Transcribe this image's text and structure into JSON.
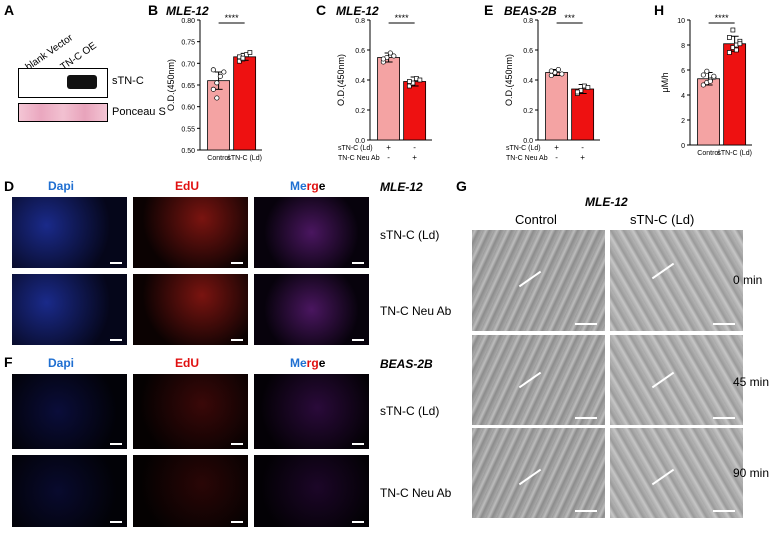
{
  "panels": {
    "A": {
      "label": "A",
      "lanes": [
        "blank Vector",
        "TN-C OE"
      ],
      "bands": [
        "sTN-C",
        "Ponceau S"
      ]
    },
    "B": {
      "label": "B",
      "title": "MLE-12"
    },
    "C": {
      "label": "C",
      "title": "MLE-12"
    },
    "E": {
      "label": "E",
      "title": "BEAS-2B"
    },
    "H": {
      "label": "H"
    },
    "D": {
      "label": "D",
      "cell_line": "MLE-12",
      "channels": {
        "dapi": "Dapi",
        "edu": "EdU",
        "merge_parts": [
          "Me",
          "r",
          "g",
          "e"
        ]
      },
      "rows": [
        "sTN-C (Ld)",
        "TN-C Neu Ab"
      ]
    },
    "F": {
      "label": "F",
      "cell_line": "BEAS-2B",
      "channels": {
        "dapi": "Dapi",
        "edu": "EdU",
        "merge_parts": [
          "Me",
          "r",
          "g",
          "e"
        ]
      },
      "rows": [
        "sTN-C (Ld)",
        "TN-C Neu Ab"
      ]
    },
    "G": {
      "label": "G",
      "cell_line": "MLE-12",
      "columns": [
        "Control",
        "sTN-C (Ld)"
      ],
      "times": [
        "0 min",
        "45 min",
        "90 min"
      ]
    }
  },
  "colors": {
    "control_bar": "#f4a3a3",
    "treat_bar": "#ee1111",
    "dapi_label": "#1f6fd1",
    "edu_label": "#e01010",
    "merge_label": "#8a2be2"
  },
  "chart_data": [
    {
      "type": "bar",
      "panel": "B",
      "title": "MLE-12",
      "ylabel": "O.D.(450nm)",
      "ylim": [
        0.5,
        0.8
      ],
      "yticks": [
        "0.50",
        "0.55",
        "0.60",
        "0.65",
        "0.70",
        "0.75",
        "0.80"
      ],
      "categories": [
        "Control",
        "sTN-C (Ld)"
      ],
      "values": [
        0.66,
        0.715
      ],
      "errors": [
        0.02,
        0.008
      ],
      "points": [
        [
          0.64,
          0.655,
          0.67,
          0.68,
          0.685,
          0.62
        ],
        [
          0.705,
          0.71,
          0.72,
          0.725,
          0.715,
          0.712
        ]
      ],
      "significance": "****"
    },
    {
      "type": "bar",
      "panel": "C",
      "title": "MLE-12",
      "ylabel": "O.D.(450nm)",
      "ylim": [
        0.0,
        0.8
      ],
      "yticks": [
        "0.0",
        "0.2",
        "0.4",
        "0.6",
        "0.8"
      ],
      "row_labels": [
        "sTN-C (Ld)",
        "TN-C Neu Ab"
      ],
      "conditions": [
        [
          "+",
          "-"
        ],
        [
          "-",
          "+"
        ]
      ],
      "values": [
        0.55,
        0.39
      ],
      "errors": [
        0.03,
        0.03
      ],
      "points": [
        [
          0.52,
          0.55,
          0.58,
          0.56,
          0.54
        ],
        [
          0.36,
          0.38,
          0.41,
          0.4,
          0.39
        ]
      ],
      "significance": "****"
    },
    {
      "type": "bar",
      "panel": "E",
      "title": "BEAS-2B",
      "ylabel": "O.D.(450nm)",
      "ylim": [
        0.0,
        0.8
      ],
      "yticks": [
        "0.0",
        "0.2",
        "0.4",
        "0.6",
        "0.8"
      ],
      "row_labels": [
        "sTN-C (Ld)",
        "TN-C Neu Ab"
      ],
      "conditions": [
        [
          "+",
          "-"
        ],
        [
          "-",
          "+"
        ]
      ],
      "values": [
        0.45,
        0.34
      ],
      "errors": [
        0.02,
        0.03
      ],
      "points": [
        [
          0.43,
          0.45,
          0.47,
          0.44,
          0.46
        ],
        [
          0.31,
          0.33,
          0.36,
          0.35,
          0.32
        ]
      ],
      "significance": "***"
    },
    {
      "type": "bar",
      "panel": "H",
      "ylabel": "μM/h",
      "ylim": [
        0,
        10
      ],
      "yticks": [
        "0",
        "2",
        "4",
        "6",
        "8",
        "10"
      ],
      "categories": [
        "Control",
        "sTN-C (Ld)"
      ],
      "values": [
        5.3,
        8.1
      ],
      "errors": [
        0.5,
        0.6
      ],
      "points": [
        [
          4.8,
          5.0,
          5.2,
          5.4,
          5.6,
          5.9,
          5.1,
          5.5
        ],
        [
          7.4,
          7.8,
          8.0,
          8.3,
          8.6,
          9.2,
          7.6,
          8.1
        ]
      ],
      "significance": "****"
    }
  ]
}
